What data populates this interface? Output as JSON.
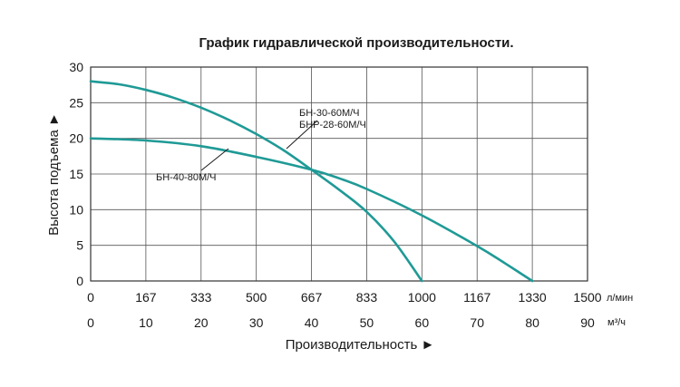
{
  "colors": {
    "curve": "#1f9a96",
    "grid": "#555555",
    "text": "#1a1a1a"
  },
  "chart_data": {
    "type": "line",
    "title": "График гидравлической производительности.",
    "ylabel": "Высота подъема ►",
    "xlabel": "Производительность ►",
    "grid": true,
    "ylim": [
      0,
      30
    ],
    "y_ticks": [
      "0",
      "5",
      "10",
      "15",
      "20",
      "25",
      "30"
    ],
    "xlim_m3h": [
      0,
      90
    ],
    "x_ticks_lmin": [
      "0",
      "167",
      "333",
      "500",
      "667",
      "833",
      "1000",
      "1167",
      "1330",
      "1500"
    ],
    "x_ticks_m3h": [
      "0",
      "10",
      "20",
      "30",
      "40",
      "50",
      "60",
      "70",
      "80",
      "90"
    ],
    "x_unit_lmin": "л/мин",
    "x_unit_m3h": "м³/ч",
    "series": [
      {
        "name": "БН-30-60М/Ч\nБНР-28-60М/Ч",
        "x_m3h": [
          0,
          5,
          10,
          15,
          20,
          25,
          30,
          35,
          40,
          45,
          50,
          55,
          60
        ],
        "y": [
          28,
          27.6,
          26.8,
          25.7,
          24.3,
          22.6,
          20.6,
          18.3,
          15.6,
          12.8,
          9.7,
          5.5,
          0
        ]
      },
      {
        "name": "БН-40-80М/Ч",
        "x_m3h": [
          0,
          10,
          20,
          30,
          40,
          45,
          50,
          60,
          70,
          75,
          80
        ],
        "y": [
          20,
          19.7,
          18.9,
          17.4,
          15.6,
          14.4,
          12.9,
          9.2,
          4.9,
          2.5,
          0
        ]
      }
    ]
  }
}
